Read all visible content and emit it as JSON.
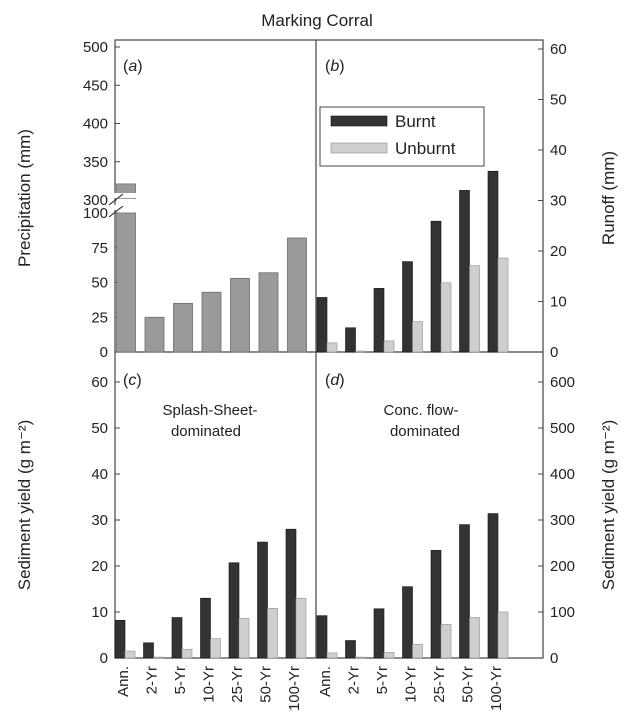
{
  "title": "Marking Corral",
  "colors": {
    "burnt": "#333333",
    "unburnt": "#cfcfcf",
    "precip": "#9a9a9a",
    "frame": "#444444"
  },
  "legend": {
    "burnt": "Burnt",
    "unburnt": "Unburnt",
    "placement": "top-right of panel b"
  },
  "chart_data": [
    {
      "panel": "a",
      "panel_label": "(a)",
      "type": "bar",
      "categories": [
        "Ann.",
        "2-Yr",
        "5-Yr",
        "10-Yr",
        "25-Yr",
        "50-Yr",
        "100-Yr"
      ],
      "series": [
        {
          "values": [
            321,
            25,
            35,
            43,
            53,
            57,
            82
          ]
        }
      ],
      "ylabel": "Precipitation (mm)",
      "y_axis": "left",
      "broken_axis": {
        "lower": [
          0,
          100
        ],
        "upper": [
          300,
          500
        ]
      },
      "yticks": [
        0,
        25,
        50,
        75,
        100,
        300,
        350,
        400,
        450,
        500
      ]
    },
    {
      "panel": "b",
      "panel_label": "(b)",
      "type": "bar",
      "categories": [
        "Ann.",
        "2-Yr",
        "5-Yr",
        "10-Yr",
        "25-Yr",
        "50-Yr",
        "100-Yr"
      ],
      "series": [
        {
          "name": "Burnt",
          "values": [
            10.8,
            4.8,
            12.6,
            17.9,
            25.9,
            32.0,
            35.8
          ]
        },
        {
          "name": "Unburnt",
          "values": [
            1.8,
            0.2,
            2.2,
            6.0,
            13.7,
            17.1,
            18.6
          ]
        }
      ],
      "ylabel": "Runoff (mm)",
      "y_axis": "right",
      "ylim": [
        0,
        60
      ],
      "yticks": [
        0,
        10,
        20,
        30,
        40,
        50,
        60
      ]
    },
    {
      "panel": "c",
      "panel_label": "(c)",
      "annotation": [
        "Splash-Sheet-",
        "dominated"
      ],
      "type": "bar",
      "categories": [
        "Ann.",
        "2-Yr",
        "5-Yr",
        "10-Yr",
        "25-Yr",
        "50-Yr",
        "100-Yr"
      ],
      "series": [
        {
          "name": "Burnt",
          "values": [
            8.2,
            3.3,
            8.8,
            13.0,
            20.7,
            25.2,
            28.0
          ]
        },
        {
          "name": "Unburnt",
          "values": [
            1.5,
            0.2,
            1.9,
            4.2,
            8.6,
            10.8,
            13.0
          ]
        }
      ],
      "ylabel": "Sediment yield (g m⁻²)",
      "y_axis": "left",
      "ylim": [
        0,
        65
      ],
      "yticks": [
        0,
        10,
        20,
        30,
        40,
        50,
        60
      ]
    },
    {
      "panel": "d",
      "panel_label": "(d)",
      "annotation": [
        "Conc. flow-",
        "dominated"
      ],
      "type": "bar",
      "categories": [
        "Ann.",
        "2-Yr",
        "5-Yr",
        "10-Yr",
        "25-Yr",
        "50-Yr",
        "100-Yr"
      ],
      "series": [
        {
          "name": "Burnt",
          "values": [
            92,
            38,
            107,
            155,
            234,
            290,
            314
          ]
        },
        {
          "name": "Unburnt",
          "values": [
            11,
            2,
            12,
            30,
            73,
            88,
            100
          ]
        }
      ],
      "ylabel": "Sediment yield (g m⁻²)",
      "y_axis": "right",
      "ylim": [
        0,
        650
      ],
      "yticks": [
        0,
        100,
        200,
        300,
        400,
        500,
        600
      ]
    }
  ]
}
